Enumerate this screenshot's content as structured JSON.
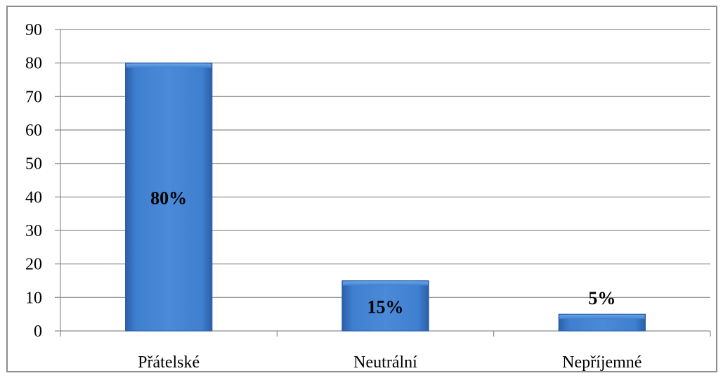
{
  "chart_data": {
    "type": "bar",
    "categories": [
      "Přátelské",
      "Neutrální",
      "Nepříjemné"
    ],
    "values": [
      80,
      15,
      5
    ],
    "data_labels": [
      "80%",
      "15%",
      "5%"
    ],
    "ylim": [
      0,
      90
    ],
    "yticks": [
      "0",
      "10",
      "20",
      "30",
      "40",
      "50",
      "60",
      "70",
      "80",
      "90"
    ],
    "grid": true,
    "legend": "none",
    "bar_color": "#3f7fcf"
  }
}
